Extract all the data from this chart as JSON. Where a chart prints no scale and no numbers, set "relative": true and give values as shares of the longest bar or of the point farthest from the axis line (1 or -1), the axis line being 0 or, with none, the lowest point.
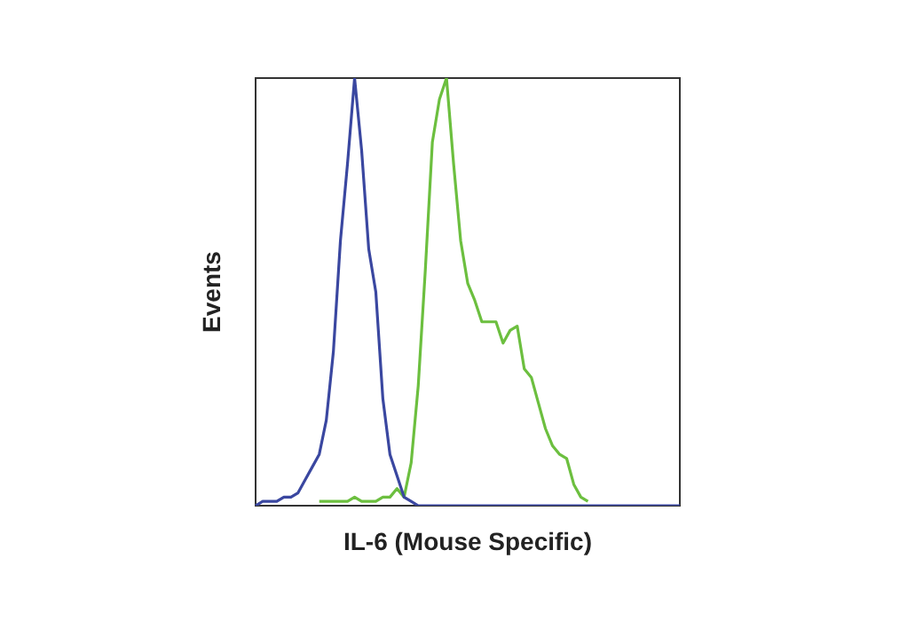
{
  "chart_data": {
    "type": "line",
    "relative": true,
    "xlabel": "IL-6 (Mouse Specific)",
    "ylabel": "Events",
    "marker": "none",
    "legend": false,
    "categories": [
      null,
      null,
      null,
      null,
      null,
      null,
      null,
      null,
      null,
      null,
      null,
      null,
      null,
      null,
      null,
      null,
      null,
      null,
      null,
      null,
      null,
      null,
      null,
      null,
      null,
      null,
      null,
      null,
      null,
      null,
      null,
      null,
      null,
      null,
      null,
      null,
      null,
      null,
      null,
      null,
      null,
      null,
      null,
      null,
      null,
      null,
      null,
      null,
      null,
      null,
      null,
      null,
      null,
      null,
      null,
      null,
      null,
      null,
      null,
      null,
      null
    ],
    "series": [
      {
        "color": "#3a47a0",
        "values": [
          0,
          0.01,
          0.01,
          0.01,
          0.02,
          0.02,
          0.03,
          0.06,
          0.09,
          0.12,
          0.2,
          0.36,
          0.62,
          0.8,
          1,
          0.83,
          0.6,
          0.5,
          0.25,
          0.12,
          0.07,
          0.02,
          0.01,
          0,
          0,
          0,
          0,
          0,
          0,
          0,
          0,
          0,
          0,
          0,
          0,
          0,
          0,
          0,
          0,
          0,
          0,
          0,
          0,
          0,
          0,
          0,
          0,
          0,
          0,
          0,
          0,
          0,
          0,
          0,
          0,
          0,
          0,
          0,
          0,
          0,
          0
        ]
      },
      {
        "color": "#6cbf3f",
        "values": [
          null,
          null,
          null,
          null,
          null,
          null,
          null,
          null,
          null,
          0.01,
          0.01,
          0.01,
          0.01,
          0.01,
          0.02,
          0.01,
          0.01,
          0.01,
          0.02,
          0.02,
          0.04,
          0.02,
          0.1,
          0.28,
          0.55,
          0.85,
          0.95,
          1,
          0.8,
          0.62,
          0.52,
          0.48,
          0.43,
          0.43,
          0.43,
          0.38,
          0.41,
          0.42,
          0.32,
          0.3,
          0.24,
          0.18,
          0.14,
          0.12,
          0.11,
          0.05,
          0.02,
          0.01,
          null,
          null,
          null,
          null,
          null,
          null,
          null,
          null,
          null,
          null,
          null,
          null,
          null
        ]
      }
    ]
  }
}
